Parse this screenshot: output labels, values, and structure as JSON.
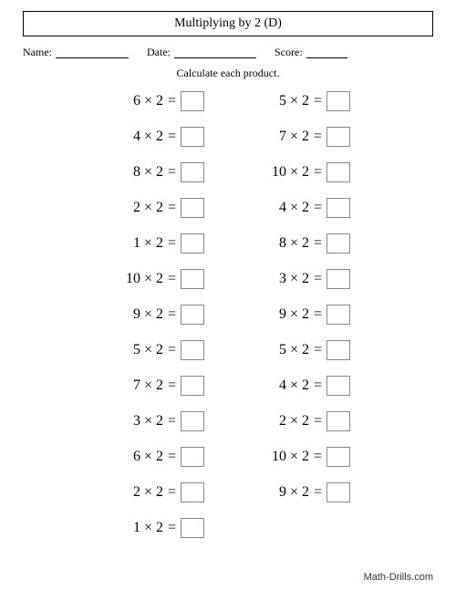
{
  "title": "Multiplying by 2 (D)",
  "labels": {
    "name": "Name:",
    "date": "Date:",
    "score": "Score:"
  },
  "instructions": "Calculate each product.",
  "multiply_sign": "×",
  "equals_sign": "=",
  "columns": [
    [
      {
        "a": 6,
        "b": 2
      },
      {
        "a": 4,
        "b": 2
      },
      {
        "a": 8,
        "b": 2
      },
      {
        "a": 2,
        "b": 2
      },
      {
        "a": 1,
        "b": 2
      },
      {
        "a": 10,
        "b": 2
      },
      {
        "a": 9,
        "b": 2
      },
      {
        "a": 5,
        "b": 2
      },
      {
        "a": 7,
        "b": 2
      },
      {
        "a": 3,
        "b": 2
      },
      {
        "a": 6,
        "b": 2
      },
      {
        "a": 2,
        "b": 2
      },
      {
        "a": 1,
        "b": 2
      }
    ],
    [
      {
        "a": 5,
        "b": 2
      },
      {
        "a": 7,
        "b": 2
      },
      {
        "a": 10,
        "b": 2
      },
      {
        "a": 4,
        "b": 2
      },
      {
        "a": 8,
        "b": 2
      },
      {
        "a": 3,
        "b": 2
      },
      {
        "a": 9,
        "b": 2
      },
      {
        "a": 5,
        "b": 2
      },
      {
        "a": 4,
        "b": 2
      },
      {
        "a": 2,
        "b": 2
      },
      {
        "a": 10,
        "b": 2
      },
      {
        "a": 9,
        "b": 2
      }
    ]
  ],
  "footer": "Math-Drills.com"
}
